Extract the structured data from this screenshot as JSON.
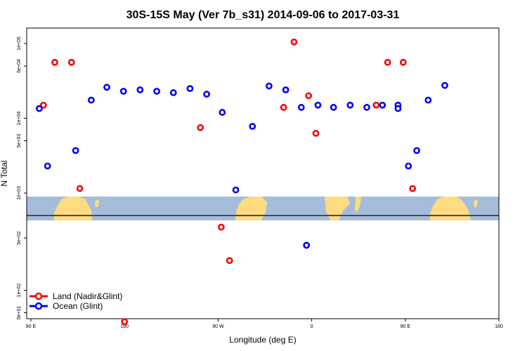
{
  "chart_data": {
    "type": "scatter",
    "title": "30S-15S May (Ver 7b_s31)   2014-09-06 to 2017-03-31",
    "xlabel": "Longitude (deg E)",
    "ylabel": "N Total",
    "x_ticks": [
      "90 E",
      "180",
      "90 W",
      "0",
      "90 E",
      "180"
    ],
    "y_ticks": [
      "1e+05",
      "5e+04",
      "1e+04",
      "5e+03",
      "1e+03",
      "5e+02",
      "1e+02",
      "5e+01"
    ],
    "y_scale": "log",
    "grid": false,
    "legend_position": "bottom-left",
    "colors": {
      "land": "#ff0000",
      "ocean": "#0000ff",
      "map_ocean": "#a5bddb",
      "map_land": "#fddc7f",
      "zero_line": "#4a4a4a"
    },
    "series": [
      {
        "name": "Land (Nadir&Glint)",
        "points": [
          [
            102,
            15000
          ],
          [
            113,
            56000
          ],
          [
            129,
            56000
          ],
          [
            137,
            1150
          ],
          [
            180,
            38
          ],
          [
            253,
            7500
          ],
          [
            273,
            700
          ],
          [
            281,
            250
          ],
          [
            333,
            14000
          ],
          [
            343,
            105000
          ],
          [
            357,
            20000
          ],
          [
            364,
            6300
          ],
          [
            422,
            15000
          ],
          [
            433,
            56000
          ],
          [
            448,
            56000
          ],
          [
            457,
            1150
          ]
        ]
      },
      {
        "name": "Ocean (Glint)",
        "points": [
          [
            83,
            15000
          ],
          [
            98,
            13500
          ],
          [
            106,
            2300
          ],
          [
            133,
            3700
          ],
          [
            148,
            17500
          ],
          [
            163,
            26000
          ],
          [
            179,
            23000
          ],
          [
            195,
            24000
          ],
          [
            211,
            23000
          ],
          [
            227,
            22000
          ],
          [
            243,
            25000
          ],
          [
            259,
            21000
          ],
          [
            274,
            12000
          ],
          [
            287,
            1100
          ],
          [
            303,
            7800
          ],
          [
            319,
            27000
          ],
          [
            335,
            24000
          ],
          [
            350,
            14000
          ],
          [
            355,
            400
          ],
          [
            366,
            15000
          ],
          [
            381,
            14000
          ],
          [
            397,
            15000
          ],
          [
            413,
            14000
          ],
          [
            428,
            15000
          ],
          [
            443,
            13500
          ],
          [
            453,
            2300
          ],
          [
            461,
            3700
          ],
          [
            472,
            17500
          ],
          [
            488,
            27500
          ]
        ]
      }
    ]
  }
}
